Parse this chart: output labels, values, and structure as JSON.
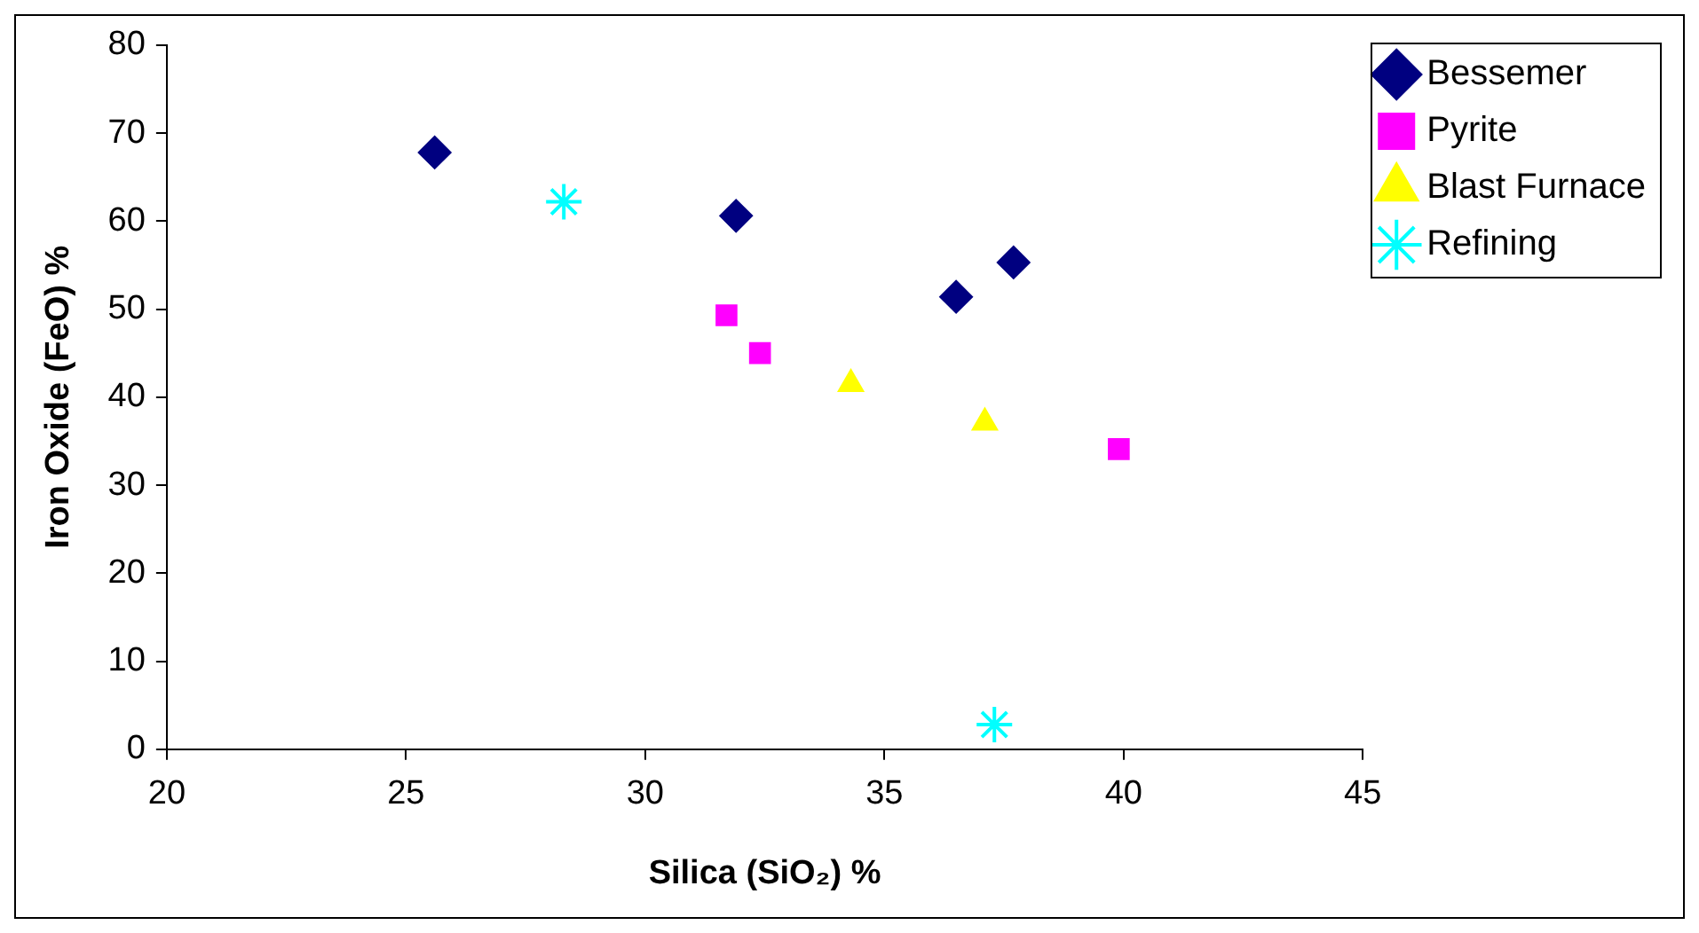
{
  "chart_data": {
    "type": "scatter",
    "xlabel": "Silica (SiO₂) %",
    "ylabel": "Iron Oxide (FeO) %",
    "xlim": [
      20,
      45
    ],
    "xticks": [
      20,
      25,
      30,
      35,
      40,
      45
    ],
    "ylim": [
      0,
      80
    ],
    "yticks": [
      0,
      10,
      20,
      30,
      40,
      50,
      60,
      70,
      80
    ],
    "grid": false,
    "legend": "top right",
    "series": [
      {
        "name": "Bessemer",
        "color": "#000080",
        "marker": "diamond",
        "x": [
          25.6,
          31.9,
          36.5,
          37.7
        ],
        "values": [
          67.8,
          60.6,
          51.4,
          55.3
        ]
      },
      {
        "name": "Pyrite",
        "color": "#ff00ff",
        "marker": "square",
        "x": [
          31.7,
          32.4,
          39.9
        ],
        "values": [
          49.3,
          45.0,
          34.1
        ]
      },
      {
        "name": "Blast Furnace",
        "color": "#ffff00",
        "marker": "triangle",
        "x": [
          34.3,
          37.1
        ],
        "values": [
          41.5,
          37.1
        ]
      },
      {
        "name": "Refining",
        "color": "#00ffff",
        "marker": "cross",
        "x": [
          28.3,
          37.3
        ],
        "values": [
          62.2,
          2.8
        ]
      }
    ]
  }
}
